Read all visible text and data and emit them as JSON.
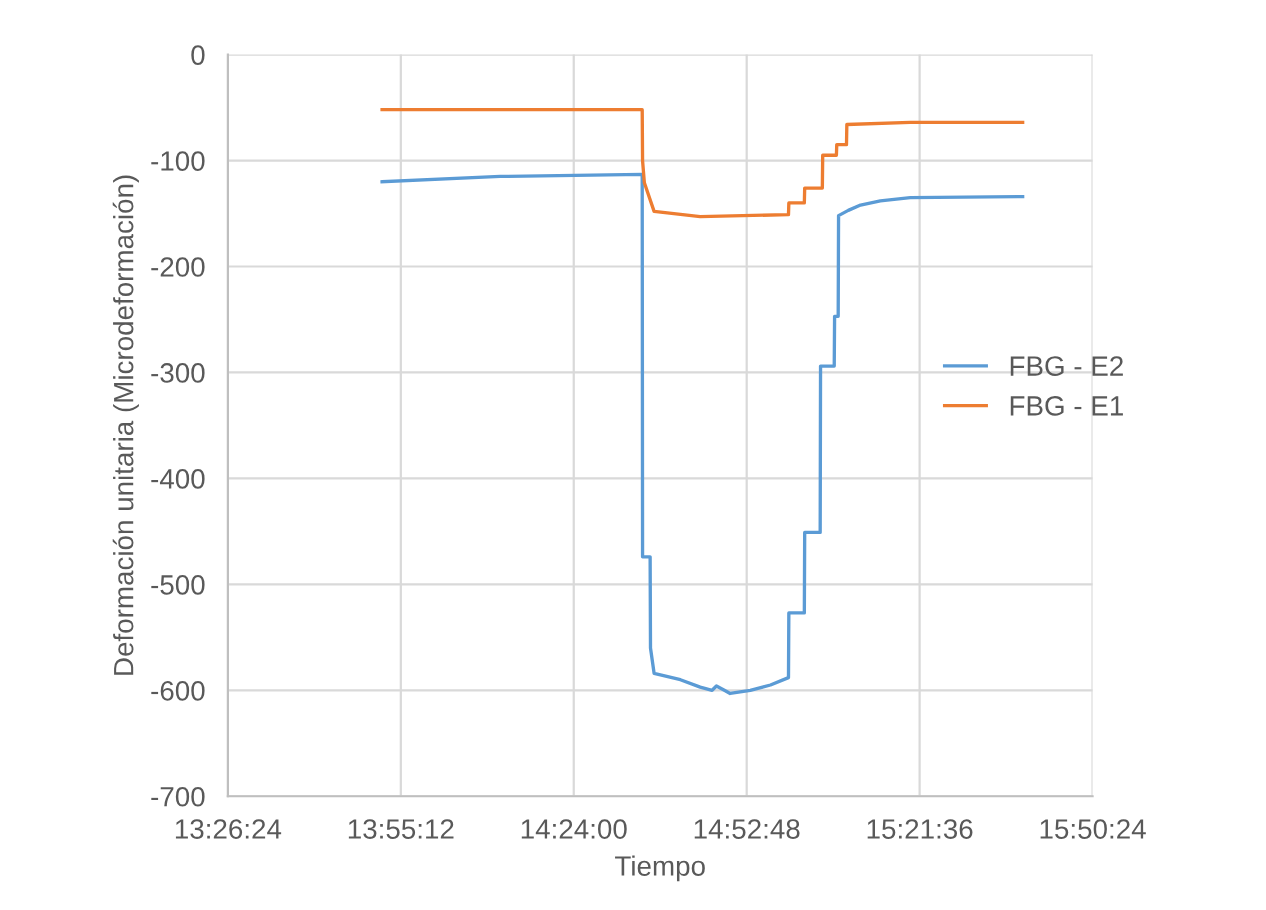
{
  "chart_data": {
    "type": "line",
    "xlabel": "Tiempo",
    "ylabel": "Deformación unitaria (Microdeformación)",
    "xlim": [
      13.44,
      15.84
    ],
    "xticks": [
      {
        "value": 13.44,
        "label": "13:26:24"
      },
      {
        "value": 13.92,
        "label": "13:55:12"
      },
      {
        "value": 14.4,
        "label": "14:24:00"
      },
      {
        "value": 14.88,
        "label": "14:52:48"
      },
      {
        "value": 15.36,
        "label": "15:21:36"
      },
      {
        "value": 15.84,
        "label": "15:50:24"
      }
    ],
    "ylim": [
      -700,
      0
    ],
    "yticks": [
      0,
      -100,
      -200,
      -300,
      -400,
      -500,
      -600,
      -700
    ],
    "grid": true,
    "legend": "right",
    "marker": "none",
    "line_style": "solid",
    "series": [
      {
        "name": "FBG - E2",
        "color": "#5b9bd5",
        "x": [
          13.868,
          14.196,
          14.59,
          14.591,
          14.612,
          14.613,
          14.623,
          14.696,
          14.751,
          14.784,
          14.796,
          14.818,
          14.834,
          14.89,
          14.946,
          14.996,
          14.997,
          15.04,
          15.041,
          15.084,
          15.085,
          15.123,
          15.124,
          15.134,
          15.135,
          15.162,
          15.196,
          15.251,
          15.334,
          15.646
        ],
        "values": [
          -120,
          -115,
          -113,
          -474,
          -474,
          -560,
          -584,
          -590,
          -597,
          -600,
          -596,
          -600,
          -603,
          -600,
          -595,
          -588,
          -527,
          -527,
          -451,
          -451,
          -294,
          -294,
          -247,
          -247,
          -152,
          -147,
          -142,
          -138,
          -135,
          -134
        ]
      },
      {
        "name": "FBG - E1",
        "color": "#ed7d31",
        "x": [
          13.868,
          14.59,
          14.591,
          14.596,
          14.623,
          14.751,
          14.996,
          14.997,
          15.04,
          15.041,
          15.09,
          15.091,
          15.129,
          15.13,
          15.157,
          15.158,
          15.334,
          15.646
        ],
        "values": [
          -52,
          -52,
          -100,
          -121,
          -148,
          -153,
          -151,
          -140,
          -140,
          -126,
          -126,
          -95,
          -95,
          -85,
          -85,
          -66,
          -64,
          -64
        ]
      }
    ]
  }
}
